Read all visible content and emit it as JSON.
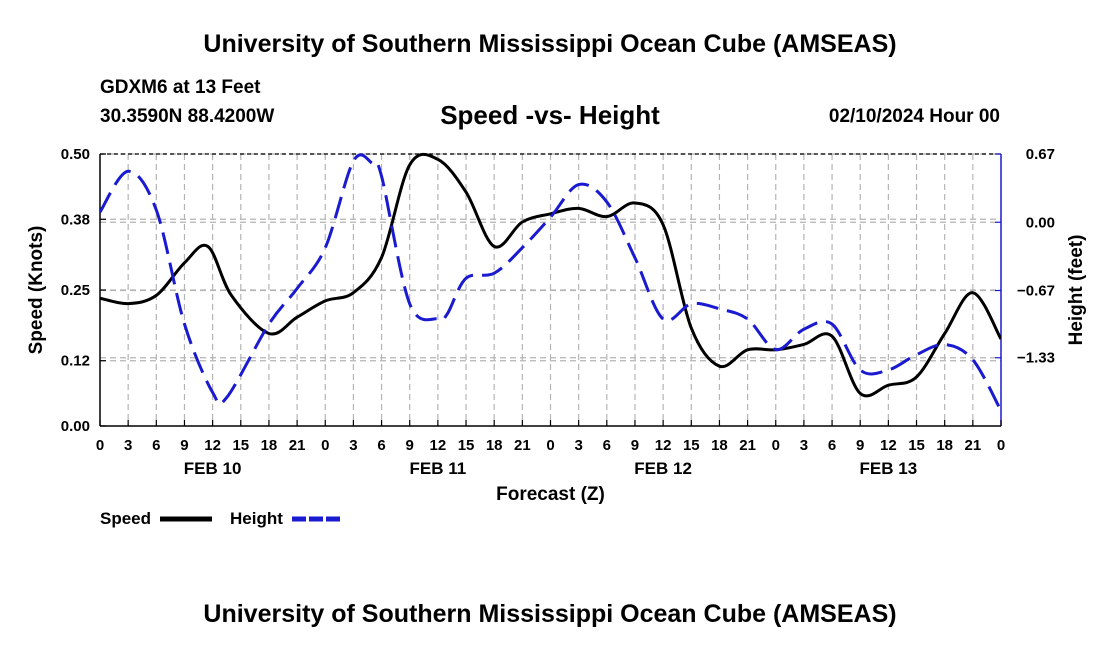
{
  "header": {
    "title": "University of Southern Mississippi Ocean Cube (AMSEAS)",
    "station": "GDXM6 at 13 Feet",
    "coords": "30.3590N  88.4200W",
    "subtitle": "Speed -vs- Height",
    "date": "02/10/2024 Hour 00"
  },
  "footer": {
    "title": "University of Southern Mississippi Ocean Cube (AMSEAS)"
  },
  "legend": {
    "speed_label": "Speed",
    "height_label": "Height"
  },
  "colors": {
    "speed": "#000000",
    "height": "#1a1ad0",
    "grid": "#b4b4b4"
  },
  "chart_data": {
    "type": "line",
    "title": "Speed -vs- Height",
    "xlabel": "Forecast (Z)",
    "ylabel": "Speed (Knots)",
    "y2label": "Height (feet)",
    "xlim": [
      0,
      96
    ],
    "ylim": [
      0,
      0.5
    ],
    "y2lim": [
      -2,
      0.67
    ],
    "x_ticks": [
      0,
      3,
      6,
      9,
      12,
      15,
      18,
      21,
      24,
      27,
      30,
      33,
      36,
      39,
      42,
      45,
      48,
      51,
      54,
      57,
      60,
      63,
      66,
      69,
      72,
      75,
      78,
      81,
      84,
      87,
      90,
      93,
      96
    ],
    "x_tick_labels": [
      "0",
      "3",
      "6",
      "9",
      "12",
      "15",
      "18",
      "21",
      "0",
      "3",
      "6",
      "9",
      "12",
      "15",
      "18",
      "21",
      "0",
      "3",
      "6",
      "9",
      "12",
      "15",
      "18",
      "21",
      "0",
      "3",
      "6",
      "9",
      "12",
      "15",
      "18",
      "21",
      "0"
    ],
    "date_labels": [
      {
        "x": 12,
        "label": "FEB 10"
      },
      {
        "x": 36,
        "label": "FEB 11"
      },
      {
        "x": 60,
        "label": "FEB 12"
      },
      {
        "x": 84,
        "label": "FEB 13"
      }
    ],
    "y_ticks": [
      0.0,
      0.12,
      0.25,
      0.38,
      0.5
    ],
    "y_tick_labels": [
      "0.00",
      "0.12",
      "0.25",
      "0.38",
      "0.50"
    ],
    "y2_ticks": [
      0.67,
      0.0,
      -0.67,
      -1.33
    ],
    "y2_tick_labels": [
      "0.67",
      "0.00",
      "−0.67",
      "−1.33"
    ],
    "series": [
      {
        "name": "Speed",
        "axis": "left",
        "style": "solid",
        "x": [
          0,
          3,
          6,
          9,
          11.5,
          14,
          18,
          21,
          24,
          27,
          30,
          33,
          36,
          39,
          42,
          45,
          48,
          51,
          54,
          57,
          60,
          63,
          66,
          69,
          72,
          75,
          78,
          81,
          84,
          87,
          90,
          93,
          96
        ],
        "values": [
          0.235,
          0.225,
          0.24,
          0.3,
          0.33,
          0.24,
          0.17,
          0.2,
          0.23,
          0.245,
          0.31,
          0.48,
          0.49,
          0.43,
          0.33,
          0.375,
          0.39,
          0.4,
          0.385,
          0.41,
          0.37,
          0.18,
          0.11,
          0.14,
          0.14,
          0.15,
          0.165,
          0.06,
          0.075,
          0.09,
          0.17,
          0.245,
          0.16
        ]
      },
      {
        "name": "Height",
        "axis": "right",
        "style": "dashed",
        "x": [
          0,
          3,
          6,
          9,
          12,
          13.5,
          18,
          21,
          24,
          27,
          29,
          30,
          33,
          36,
          37,
          39,
          42,
          45,
          48,
          51,
          54,
          57,
          60,
          63,
          66,
          69,
          72,
          75,
          78,
          81,
          84,
          87,
          90,
          93,
          96
        ],
        "values": [
          0.1,
          0.5,
          0.12,
          -1.0,
          -1.67,
          -1.72,
          -1.0,
          -0.65,
          -0.25,
          0.6,
          0.58,
          0.45,
          -0.8,
          -0.95,
          -0.9,
          -0.55,
          -0.5,
          -0.25,
          0.05,
          0.37,
          0.2,
          -0.35,
          -0.95,
          -0.8,
          -0.85,
          -0.95,
          -1.25,
          -1.05,
          -1.0,
          -1.45,
          -1.45,
          -1.3,
          -1.2,
          -1.35,
          -1.85
        ]
      }
    ]
  }
}
